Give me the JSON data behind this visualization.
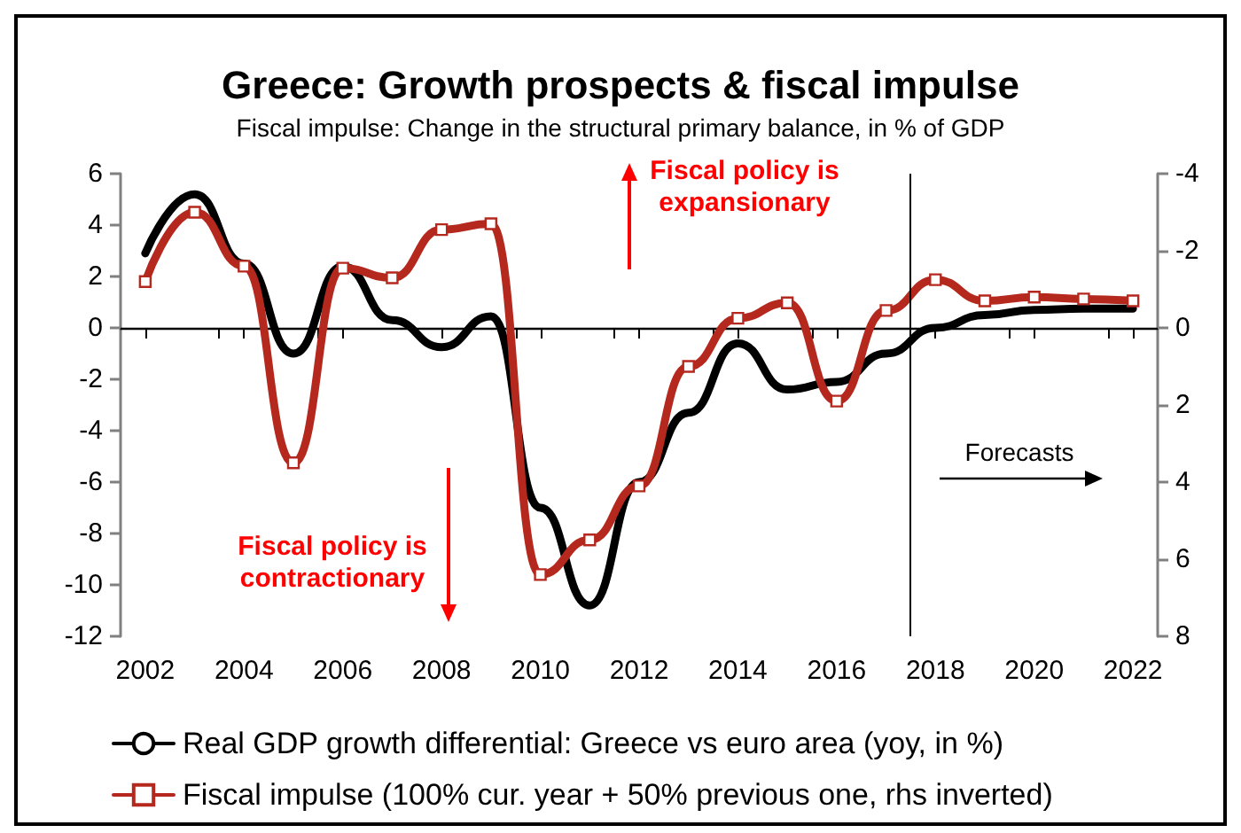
{
  "chart_data": {
    "type": "line",
    "title": "Greece: Growth prospects & fiscal impulse",
    "subtitle": "Fiscal impulse: Change in the structural primary balance, in % of GDP",
    "x": [
      2002,
      2003,
      2004,
      2005,
      2006,
      2007,
      2008,
      2009,
      2010,
      2011,
      2012,
      2013,
      2014,
      2015,
      2016,
      2017,
      2018,
      2019,
      2020,
      2021,
      2022
    ],
    "series": [
      {
        "name": "Real GDP growth differential: Greece vs euro area (yoy, in %)",
        "color": "#000000",
        "marker": "none",
        "values": [
          2.9,
          5.2,
          2.5,
          -1.0,
          2.4,
          0.3,
          -0.75,
          0.45,
          -7.0,
          -10.8,
          -6.0,
          -3.3,
          -0.6,
          -2.4,
          -2.1,
          -1.0,
          0.0,
          0.5,
          0.7,
          0.75,
          0.75
        ]
      },
      {
        "name": "Fiscal impulse (100% cur. year + 50% previous one, rhs inverted)",
        "color": "#b5281e",
        "marker": "square",
        "axis": "y2",
        "values": [
          -1.2,
          -3.0,
          -1.6,
          3.5,
          -1.55,
          -1.3,
          -2.55,
          -2.7,
          6.4,
          5.5,
          4.1,
          1.0,
          -0.25,
          -0.65,
          1.9,
          -0.45,
          -1.25,
          -0.7,
          -0.8,
          -0.75,
          -0.7
        ]
      }
    ],
    "xlim": [
      2001.5,
      2022.5
    ],
    "xticks": [
      2002,
      {
        "value": 2003.5,
        "label": null
      },
      2004,
      {
        "value": 2005.5,
        "label": null
      },
      2006,
      {
        "value": 2007.5,
        "label": null
      },
      2008,
      {
        "value": 2009.5,
        "label": null
      },
      2010,
      {
        "value": 2011.5,
        "label": null
      },
      2012,
      {
        "value": 2013.5,
        "label": null
      },
      2014,
      {
        "value": 2015.5,
        "label": null
      },
      2016,
      {
        "value": 2017.5,
        "label": null
      },
      2018,
      {
        "value": 2019.5,
        "label": null
      },
      2020,
      {
        "value": 2021.5,
        "label": null
      },
      2022
    ],
    "ylim": [
      -12,
      6
    ],
    "yticks": [
      -12,
      -10,
      -8,
      -6,
      -4,
      -2,
      0,
      2,
      4,
      6
    ],
    "y2lim": [
      8,
      -4
    ],
    "y2ticks": [
      -4,
      -2,
      0,
      2,
      4,
      6,
      8
    ],
    "ref_lines": [
      {
        "axis": "x",
        "value": 2017.5,
        "color": "#000000",
        "line_style": "solid"
      }
    ],
    "annotations": [
      "Fiscal policy is expansionary",
      "Fiscal policy is contractionary",
      "Forecasts"
    ],
    "legend": "bottom",
    "grid": false,
    "line_style": "solid"
  }
}
